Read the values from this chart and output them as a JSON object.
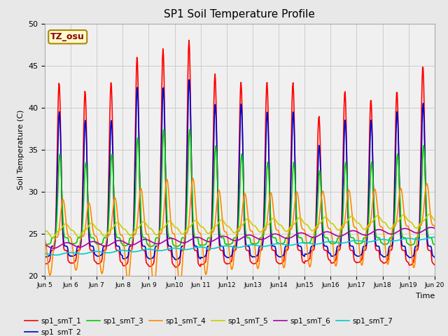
{
  "title": "SP1 Soil Temperature Profile",
  "ylabel": "Soil Temperature (C)",
  "xlabel": "Time",
  "annotation": "TZ_osu",
  "annotation_color": "#8B0000",
  "annotation_bg": "#FFFACD",
  "annotation_border": "#AA8800",
  "ylim": [
    20,
    50
  ],
  "yticks": [
    20,
    25,
    30,
    35,
    40,
    45,
    50
  ],
  "series_colors": {
    "sp1_smT_1": "#FF0000",
    "sp1_smT_2": "#0000CC",
    "sp1_smT_3": "#00CC00",
    "sp1_smT_4": "#FF8800",
    "sp1_smT_5": "#CCCC00",
    "sp1_smT_6": "#AA00AA",
    "sp1_smT_7": "#00CCCC"
  },
  "grid_color": "#CCCCCC",
  "bg_color": "#E8E8E8",
  "plot_bg": "#F0F0F0"
}
